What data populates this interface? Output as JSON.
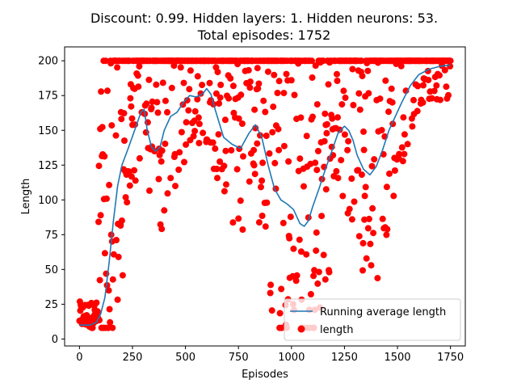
{
  "chart_data": {
    "type": "scatter",
    "title_lines": [
      "Discount: 0.99. Hidden layers: 1. Hidden neurons: 53.",
      "Total episodes: 1752"
    ],
    "xlabel": "Episodes",
    "ylabel": "Length",
    "xlim": [
      -70,
      1820
    ],
    "ylim": [
      -5,
      210
    ],
    "x_ticks": [
      0,
      250,
      500,
      750,
      1000,
      1250,
      1500,
      1750
    ],
    "y_ticks": [
      0,
      25,
      50,
      75,
      100,
      125,
      150,
      175,
      200
    ],
    "legend_position": "lower right",
    "grid": false,
    "series": [
      {
        "name": "Running average length",
        "kind": "line",
        "color": "#1f77b4",
        "points": [
          [
            0,
            10
          ],
          [
            50,
            10
          ],
          [
            80,
            12
          ],
          [
            100,
            18
          ],
          [
            120,
            30
          ],
          [
            140,
            55
          ],
          [
            160,
            85
          ],
          [
            180,
            110
          ],
          [
            200,
            125
          ],
          [
            230,
            137
          ],
          [
            260,
            150
          ],
          [
            290,
            163
          ],
          [
            305,
            165
          ],
          [
            320,
            150
          ],
          [
            340,
            138
          ],
          [
            360,
            135
          ],
          [
            380,
            138
          ],
          [
            400,
            150
          ],
          [
            430,
            160
          ],
          [
            460,
            163
          ],
          [
            490,
            170
          ],
          [
            520,
            175
          ],
          [
            550,
            174
          ],
          [
            580,
            176
          ],
          [
            600,
            180
          ],
          [
            620,
            176
          ],
          [
            640,
            165
          ],
          [
            680,
            145
          ],
          [
            720,
            140
          ],
          [
            760,
            137
          ],
          [
            800,
            148
          ],
          [
            830,
            154
          ],
          [
            860,
            145
          ],
          [
            890,
            125
          ],
          [
            920,
            108
          ],
          [
            950,
            100
          ],
          [
            980,
            97
          ],
          [
            1010,
            93
          ],
          [
            1040,
            83
          ],
          [
            1060,
            81
          ],
          [
            1080,
            85
          ],
          [
            1100,
            95
          ],
          [
            1130,
            108
          ],
          [
            1160,
            122
          ],
          [
            1190,
            135
          ],
          [
            1220,
            148
          ],
          [
            1250,
            153
          ],
          [
            1270,
            150
          ],
          [
            1290,
            143
          ],
          [
            1310,
            132
          ],
          [
            1340,
            122
          ],
          [
            1370,
            118
          ],
          [
            1400,
            124
          ],
          [
            1430,
            136
          ],
          [
            1460,
            150
          ],
          [
            1490,
            160
          ],
          [
            1520,
            170
          ],
          [
            1560,
            182
          ],
          [
            1600,
            190
          ],
          [
            1650,
            194
          ],
          [
            1700,
            196
          ],
          [
            1750,
            197
          ]
        ]
      },
      {
        "name": "length",
        "kind": "scatter",
        "color": "#ff0000"
      }
    ]
  }
}
